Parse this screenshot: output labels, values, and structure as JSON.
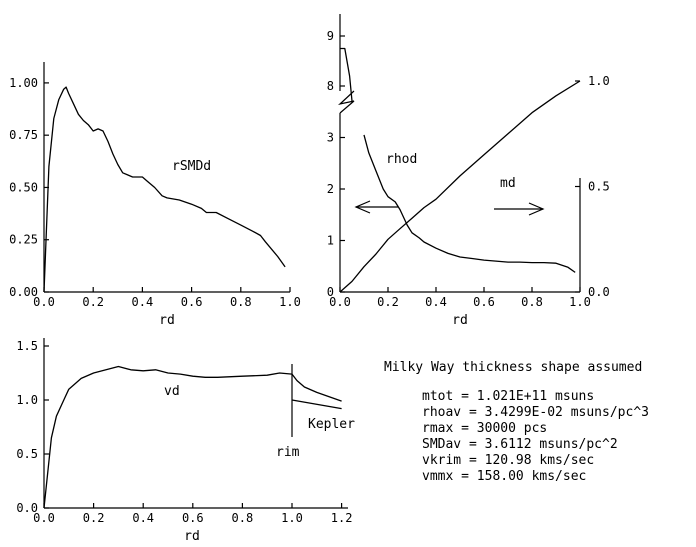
{
  "chart_data": [
    {
      "type": "line",
      "xlabel": "rd",
      "xlim": [
        0,
        1
      ],
      "ylim": [
        0,
        1.1
      ],
      "xticks": [
        "0.0",
        "0.2",
        "0.4",
        "0.6",
        "0.8",
        "1.0"
      ],
      "yticks": [
        "0.00",
        "0.25",
        "0.50",
        "0.75",
        "1.00"
      ],
      "annotations": [
        "rSMDd"
      ],
      "series": [
        {
          "name": "rSMDd",
          "x": [
            0,
            0.02,
            0.04,
            0.06,
            0.08,
            0.09,
            0.1,
            0.12,
            0.14,
            0.16,
            0.18,
            0.2,
            0.22,
            0.24,
            0.26,
            0.28,
            0.3,
            0.32,
            0.34,
            0.36,
            0.4,
            0.42,
            0.45,
            0.48,
            0.5,
            0.55,
            0.6,
            0.64,
            0.66,
            0.68,
            0.7,
            0.75,
            0.8,
            0.85,
            0.88,
            0.9,
            0.95,
            0.98
          ],
          "y": [
            0,
            0.6,
            0.83,
            0.92,
            0.97,
            0.98,
            0.95,
            0.9,
            0.85,
            0.82,
            0.8,
            0.77,
            0.78,
            0.77,
            0.72,
            0.66,
            0.61,
            0.57,
            0.56,
            0.55,
            0.55,
            0.53,
            0.5,
            0.46,
            0.45,
            0.44,
            0.42,
            0.4,
            0.38,
            0.38,
            0.38,
            0.35,
            0.32,
            0.29,
            0.27,
            0.24,
            0.17,
            0.12
          ]
        }
      ]
    },
    {
      "type": "line",
      "xlabel": "rd",
      "xlim": [
        0,
        1
      ],
      "ylim_left": [
        0,
        9.3
      ],
      "ylim_right": [
        0,
        1.1
      ],
      "axis_break": "between 3 and 8 on left axis",
      "xticks": [
        "0.0",
        "0.2",
        "0.4",
        "0.6",
        "0.8",
        "1.0"
      ],
      "yticks_left": [
        "0",
        "1",
        "2",
        "3",
        "8",
        "9"
      ],
      "yticks_right": [
        "0.0",
        "0.5",
        "1.0"
      ],
      "annotations": [
        "rhod",
        "md"
      ],
      "series": [
        {
          "name": "rhod",
          "axis": "left",
          "x": [
            0,
            0.02,
            0.04,
            0.05
          ],
          "y": [
            8.75,
            8.75,
            8.2,
            7.7
          ]
        },
        {
          "name": "rhod",
          "axis": "left",
          "x": [
            0.1,
            0.12,
            0.15,
            0.18,
            0.2,
            0.23,
            0.25,
            0.28,
            0.3,
            0.33,
            0.35,
            0.4,
            0.45,
            0.5,
            0.55,
            0.6,
            0.65,
            0.7,
            0.75,
            0.8,
            0.85,
            0.9,
            0.95,
            0.98
          ],
          "y": [
            3.05,
            2.7,
            2.35,
            2.0,
            1.85,
            1.75,
            1.6,
            1.3,
            1.15,
            1.05,
            0.97,
            0.85,
            0.75,
            0.68,
            0.65,
            0.62,
            0.6,
            0.58,
            0.58,
            0.57,
            0.57,
            0.56,
            0.48,
            0.38
          ]
        },
        {
          "name": "md",
          "axis": "right",
          "x": [
            0,
            0.05,
            0.1,
            0.15,
            0.2,
            0.25,
            0.3,
            0.35,
            0.4,
            0.5,
            0.6,
            0.7,
            0.8,
            0.9,
            1.0
          ],
          "y": [
            0,
            0.05,
            0.12,
            0.18,
            0.25,
            0.3,
            0.35,
            0.4,
            0.44,
            0.55,
            0.65,
            0.75,
            0.85,
            0.93,
            1.0
          ]
        }
      ]
    },
    {
      "type": "line",
      "xlabel": "rd",
      "xlim": [
        0,
        1.25
      ],
      "ylim": [
        0,
        1.6
      ],
      "xticks": [
        "0.0",
        "0.2",
        "0.4",
        "0.6",
        "0.8",
        "1.0",
        "1.2"
      ],
      "yticks": [
        "0.0",
        "0.5",
        "1.0",
        "1.5"
      ],
      "annotations": [
        "vd",
        "rim",
        "Kepler"
      ],
      "series": [
        {
          "name": "vd",
          "x": [
            0,
            0.03,
            0.05,
            0.08,
            0.1,
            0.15,
            0.2,
            0.25,
            0.3,
            0.35,
            0.4,
            0.45,
            0.5,
            0.55,
            0.6,
            0.65,
            0.7,
            0.8,
            0.9,
            0.95,
            1.0
          ],
          "y": [
            0,
            0.65,
            0.85,
            1.0,
            1.1,
            1.2,
            1.25,
            1.28,
            1.31,
            1.28,
            1.27,
            1.28,
            1.25,
            1.24,
            1.22,
            1.21,
            1.21,
            1.22,
            1.23,
            1.25,
            1.24
          ]
        },
        {
          "name": "",
          "x": [
            1.0,
            1.02,
            1.05,
            1.1,
            1.15,
            1.2
          ],
          "y": [
            1.24,
            1.18,
            1.12,
            1.07,
            1.03,
            0.99
          ]
        },
        {
          "name": "Kepler",
          "x": [
            1.0,
            1.2
          ],
          "y": [
            1.0,
            0.92
          ]
        }
      ]
    }
  ],
  "notes": {
    "heading": "Milky Way thickness shape assumed",
    "lines": [
      "mtot = 1.021E+11 msuns",
      "rhoav = 3.4299E-02 msuns/pc^3",
      "rmax = 30000 pcs",
      "SMDav = 3.6112 msuns/pc^2",
      "vkrim = 120.98 kms/sec",
      "vmmx = 158.00 kms/sec"
    ]
  }
}
